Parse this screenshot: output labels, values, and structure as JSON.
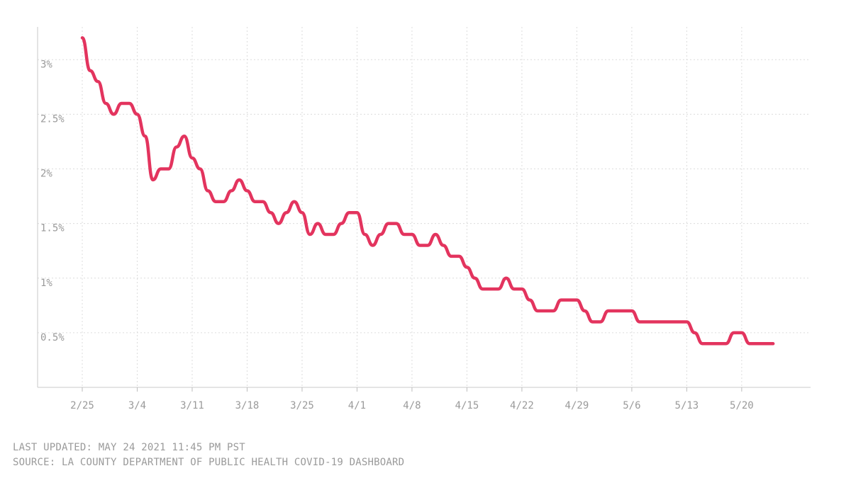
{
  "chart_data": {
    "type": "line",
    "title": "",
    "xlabel": "",
    "ylabel": "",
    "x_start": "2021-02-25",
    "x_ticks": [
      "2/25",
      "3/4",
      "3/11",
      "3/18",
      "3/25",
      "4/1",
      "4/8",
      "4/15",
      "4/22",
      "4/29",
      "5/6",
      "5/13",
      "5/20"
    ],
    "y_ticks": [
      "0.5%",
      "1%",
      "1.5%",
      "2%",
      "2.5%",
      "3%"
    ],
    "ylim": [
      0,
      3.3
    ],
    "grid": true,
    "line_color": "#e3345e",
    "x": [
      "2/25",
      "2/26",
      "2/27",
      "2/28",
      "3/1",
      "3/2",
      "3/3",
      "3/4",
      "3/5",
      "3/6",
      "3/7",
      "3/8",
      "3/9",
      "3/10",
      "3/11",
      "3/12",
      "3/13",
      "3/14",
      "3/15",
      "3/16",
      "3/17",
      "3/18",
      "3/19",
      "3/20",
      "3/21",
      "3/22",
      "3/23",
      "3/24",
      "3/25",
      "3/26",
      "3/27",
      "3/28",
      "3/29",
      "3/30",
      "3/31",
      "4/1",
      "4/2",
      "4/3",
      "4/4",
      "4/5",
      "4/6",
      "4/7",
      "4/8",
      "4/9",
      "4/10",
      "4/11",
      "4/12",
      "4/13",
      "4/14",
      "4/15",
      "4/16",
      "4/17",
      "4/18",
      "4/19",
      "4/20",
      "4/21",
      "4/22",
      "4/23",
      "4/24",
      "4/25",
      "4/26",
      "4/27",
      "4/28",
      "4/29",
      "4/30",
      "5/1",
      "5/2",
      "5/3",
      "5/4",
      "5/5",
      "5/6",
      "5/7",
      "5/8",
      "5/9",
      "5/10",
      "5/11",
      "5/12",
      "5/13",
      "5/14",
      "5/15",
      "5/16",
      "5/17",
      "5/18",
      "5/19",
      "5/20",
      "5/21",
      "5/22",
      "5/23",
      "5/24"
    ],
    "series": [
      {
        "values": [
          3.2,
          2.9,
          2.8,
          2.6,
          2.5,
          2.6,
          2.6,
          2.5,
          2.3,
          1.9,
          2.0,
          2.0,
          2.2,
          2.3,
          2.1,
          2.0,
          1.8,
          1.7,
          1.7,
          1.8,
          1.9,
          1.8,
          1.7,
          1.7,
          1.6,
          1.5,
          1.6,
          1.7,
          1.6,
          1.4,
          1.5,
          1.4,
          1.4,
          1.5,
          1.6,
          1.6,
          1.4,
          1.3,
          1.4,
          1.5,
          1.5,
          1.4,
          1.4,
          1.3,
          1.3,
          1.4,
          1.3,
          1.2,
          1.2,
          1.1,
          1.0,
          0.9,
          0.9,
          0.9,
          1.0,
          0.9,
          0.9,
          0.8,
          0.7,
          0.7,
          0.7,
          0.8,
          0.8,
          0.8,
          0.7,
          0.6,
          0.6,
          0.7,
          0.7,
          0.7,
          0.7,
          0.6,
          0.6,
          0.6,
          0.6,
          0.6,
          0.6,
          0.6,
          0.5,
          0.4,
          0.4,
          0.4,
          0.4,
          0.5,
          0.5,
          0.4,
          0.4,
          0.4,
          0.4
        ]
      }
    ]
  },
  "footer": {
    "last_updated": "LAST UPDATED: MAY 24 2021 11:45 PM PST",
    "source": "SOURCE: LA COUNTY DEPARTMENT OF PUBLIC HEALTH COVID-19 DASHBOARD"
  }
}
